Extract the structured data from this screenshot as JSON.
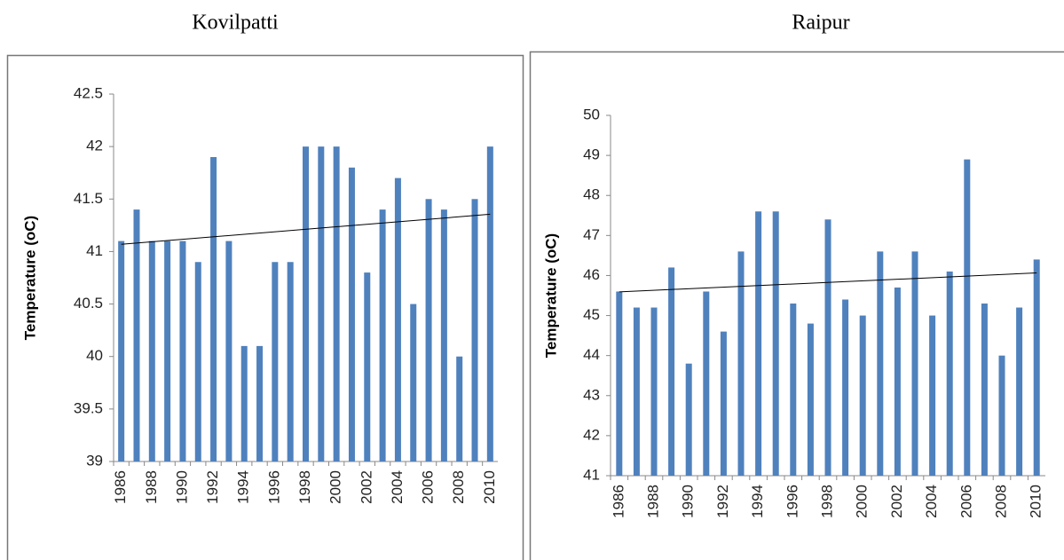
{
  "chart_data": [
    {
      "type": "bar",
      "title": "Kovilpatti",
      "ylabel": "Temperature (oC)",
      "categories": [
        "1986",
        null,
        "1988",
        null,
        "1990",
        null,
        "1992",
        null,
        "1994",
        null,
        "1996",
        null,
        "1998",
        null,
        "2000",
        null,
        "2002",
        null,
        "2004",
        null,
        "2006",
        null,
        "2008",
        null,
        "2010"
      ],
      "values": [
        41.1,
        41.4,
        41.1,
        41.1,
        41.1,
        40.9,
        41.9,
        41.1,
        40.1,
        40.1,
        40.9,
        40.9,
        42.0,
        42.0,
        42.0,
        41.8,
        40.8,
        41.4,
        41.7,
        40.5,
        41.5,
        41.4,
        40.0,
        41.5,
        42.0
      ],
      "color": "#4f81bd",
      "ylim": [
        39,
        42.5
      ],
      "yticks": [
        39,
        39.5,
        40,
        40.5,
        41,
        41.5,
        42,
        42.5
      ],
      "trendline": true
    },
    {
      "type": "bar",
      "title": "Raipur",
      "ylabel": "Temperature (oC)",
      "categories": [
        "1986",
        null,
        "1988",
        null,
        "1990",
        null,
        "1992",
        null,
        "1994",
        null,
        "1996",
        null,
        "1998",
        null,
        "2000",
        null,
        "2002",
        null,
        "2004",
        null,
        "2006",
        null,
        "2008",
        null,
        "2010"
      ],
      "values": [
        45.6,
        45.2,
        45.2,
        46.2,
        43.8,
        45.6,
        44.6,
        46.6,
        47.6,
        47.6,
        45.3,
        44.8,
        47.4,
        45.4,
        45.0,
        46.6,
        45.7,
        46.6,
        45.0,
        46.1,
        48.9,
        45.3,
        44.0,
        45.2,
        46.4
      ],
      "color": "#4f81bd",
      "ylim": [
        41,
        50
      ],
      "yticks": [
        41,
        42,
        43,
        44,
        45,
        46,
        47,
        48,
        49,
        50
      ],
      "trendline": true
    }
  ]
}
